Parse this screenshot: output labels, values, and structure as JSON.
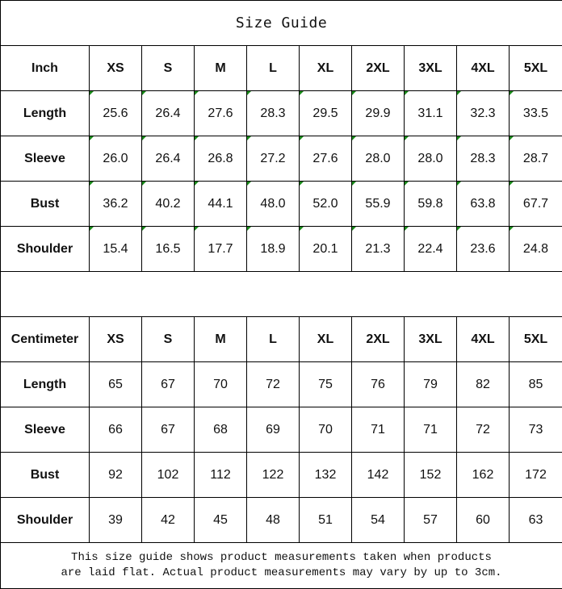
{
  "title": "Size Guide",
  "sizes": [
    "XS",
    "S",
    "M",
    "L",
    "XL",
    "2XL",
    "3XL",
    "4XL",
    "5XL"
  ],
  "inch": {
    "label": "Inch",
    "rows": [
      {
        "name": "Length",
        "values": [
          "25.6",
          "26.4",
          "27.6",
          "28.3",
          "29.5",
          "29.9",
          "31.1",
          "32.3",
          "33.5"
        ]
      },
      {
        "name": "Sleeve",
        "values": [
          "26.0",
          "26.4",
          "26.8",
          "27.2",
          "27.6",
          "28.0",
          "28.0",
          "28.3",
          "28.7"
        ]
      },
      {
        "name": "Bust",
        "values": [
          "36.2",
          "40.2",
          "44.1",
          "48.0",
          "52.0",
          "55.9",
          "59.8",
          "63.8",
          "67.7"
        ]
      },
      {
        "name": "Shoulder",
        "values": [
          "15.4",
          "16.5",
          "17.7",
          "18.9",
          "20.1",
          "21.3",
          "22.4",
          "23.6",
          "24.8"
        ]
      }
    ]
  },
  "cm": {
    "label": "Centimeter",
    "rows": [
      {
        "name": "Length",
        "values": [
          "65",
          "67",
          "70",
          "72",
          "75",
          "76",
          "79",
          "82",
          "85"
        ]
      },
      {
        "name": "Sleeve",
        "values": [
          "66",
          "67",
          "68",
          "69",
          "70",
          "71",
          "71",
          "72",
          "73"
        ]
      },
      {
        "name": "Bust",
        "values": [
          "92",
          "102",
          "112",
          "122",
          "132",
          "142",
          "152",
          "162",
          "172"
        ]
      },
      {
        "name": "Shoulder",
        "values": [
          "39",
          "42",
          "45",
          "48",
          "51",
          "54",
          "57",
          "60",
          "63"
        ]
      }
    ]
  },
  "footer": {
    "line1": "This size guide shows product measurements taken when products",
    "line2": "are laid flat. Actual product measurements may vary by up to 3cm."
  },
  "colors": {
    "text_marker": "#1a8a1a",
    "border": "#000000"
  }
}
